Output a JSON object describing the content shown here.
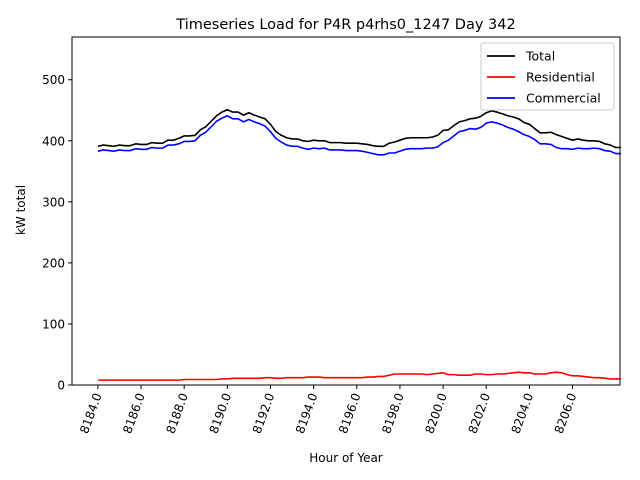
{
  "chart_data": {
    "type": "line",
    "title": "Timeseries Load for P4R p4rhs0_1247  Day 342",
    "xlabel": "Hour of Year",
    "ylabel": "kW total",
    "xlim": [
      8182.8,
      8208.2
    ],
    "ylim": [
      0,
      570
    ],
    "x_ticks": [
      8184,
      8186,
      8188,
      8190,
      8192,
      8194,
      8196,
      8198,
      8200,
      8202,
      8204,
      8206
    ],
    "x_tick_labels": [
      "8184.0",
      "8186.0",
      "8188.0",
      "8190.0",
      "8192.0",
      "8194.0",
      "8196.0",
      "8198.0",
      "8200.0",
      "8202.0",
      "8204.0",
      "8206.0"
    ],
    "y_ticks": [
      0,
      100,
      200,
      300,
      400,
      500
    ],
    "y_tick_labels": [
      "0",
      "100",
      "200",
      "300",
      "400",
      "500"
    ],
    "legend_position": "top-right",
    "x_start": 8184.0,
    "x_step": 0.25,
    "series": [
      {
        "name": "Total",
        "color": "#000000",
        "values": [
          391,
          393,
          392,
          391,
          393,
          392,
          392,
          395,
          394,
          394,
          397,
          396,
          396,
          401,
          401,
          404,
          408,
          408,
          409,
          418,
          423,
          432,
          441,
          447,
          451,
          447,
          447,
          442,
          446,
          442,
          439,
          436,
          427,
          415,
          409,
          405,
          403,
          403,
          400,
          399,
          401,
          400,
          400,
          397,
          397,
          397,
          396,
          396,
          396,
          395,
          394,
          392,
          391,
          391,
          396,
          398,
          401,
          404,
          405,
          405,
          405,
          405,
          406,
          409,
          417,
          418,
          425,
          431,
          433,
          436,
          437,
          440,
          446,
          449,
          447,
          444,
          441,
          439,
          436,
          430,
          427,
          420,
          413,
          413,
          414,
          410,
          407,
          404,
          401,
          403,
          401,
          400,
          400,
          399,
          395,
          393,
          389,
          389
        ]
      },
      {
        "name": "Residential",
        "color": "#ff0000",
        "values": [
          8,
          8,
          8,
          8,
          8,
          8,
          8,
          8,
          8,
          8,
          8,
          8,
          8,
          8,
          8,
          8,
          9,
          9,
          9,
          9,
          9,
          9,
          9,
          10,
          10,
          11,
          11,
          11,
          11,
          11,
          11,
          12,
          12,
          11,
          11,
          12,
          12,
          12,
          12,
          13,
          13,
          13,
          12,
          12,
          12,
          12,
          12,
          12,
          12,
          12,
          13,
          13,
          14,
          14,
          16,
          18,
          18,
          18,
          18,
          18,
          18,
          17,
          18,
          19,
          20,
          17,
          17,
          16,
          16,
          16,
          18,
          18,
          17,
          17,
          18,
          18,
          19,
          20,
          21,
          20,
          20,
          18,
          18,
          18,
          20,
          21,
          20,
          17,
          15,
          15,
          14,
          13,
          12,
          12,
          11,
          10,
          10,
          10
        ]
      },
      {
        "name": "Commercial",
        "color": "#0000ff",
        "values": [
          383,
          385,
          384,
          383,
          385,
          384,
          384,
          387,
          386,
          386,
          389,
          388,
          388,
          393,
          393,
          395,
          399,
          399,
          400,
          409,
          414,
          423,
          432,
          437,
          441,
          436,
          436,
          431,
          435,
          431,
          428,
          424,
          415,
          404,
          398,
          393,
          391,
          391,
          388,
          386,
          388,
          387,
          388,
          385,
          385,
          385,
          384,
          384,
          384,
          383,
          381,
          379,
          377,
          377,
          380,
          380,
          383,
          386,
          387,
          387,
          387,
          388,
          388,
          390,
          397,
          401,
          408,
          415,
          417,
          420,
          419,
          422,
          429,
          431,
          429,
          426,
          422,
          419,
          415,
          410,
          407,
          402,
          395,
          395,
          394,
          389,
          387,
          387,
          386,
          388,
          387,
          387,
          388,
          387,
          384,
          383,
          379,
          379
        ]
      }
    ]
  }
}
